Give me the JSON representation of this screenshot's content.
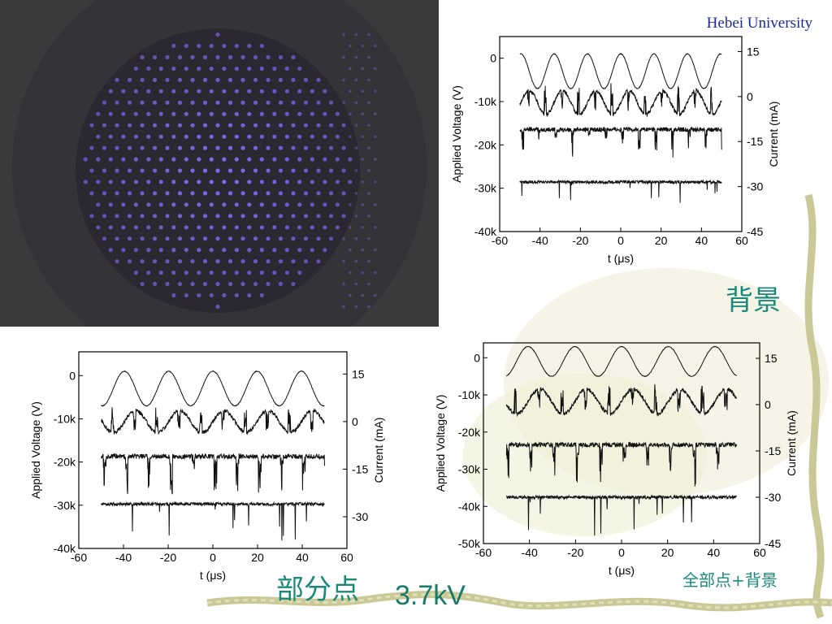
{
  "header": {
    "institution": "Hebei University"
  },
  "captions": {
    "top_right": "背景",
    "bottom_left": "部分点",
    "bottom_right": "全部点+背景",
    "voltage": "3.7kV"
  },
  "photo": {
    "description_icon": "discharge-dot-array-photo",
    "dot_color": "#8a6cff",
    "background_color": "#3a3a3a"
  },
  "colors": {
    "trace": "#111111",
    "caption": "#1a8a7a",
    "title": "#1a2a9a"
  },
  "chart_data": [
    {
      "id": "top",
      "type": "line",
      "xlabel": "t (μs)",
      "ylabel": "Applied Voltage (V)",
      "y2label": "Current (mA)",
      "xlim": [
        -60,
        60
      ],
      "xticks": [
        "-60",
        "-40",
        "-20",
        "0",
        "20",
        "40",
        "60"
      ],
      "xtick_values": [
        -60,
        -40,
        -20,
        0,
        20,
        40,
        60
      ],
      "ylim": [
        -40000,
        5000
      ],
      "yticks": [
        "0",
        "-10k",
        "-20k",
        "-30k",
        "-40k"
      ],
      "ytick_values": [
        0,
        -10000,
        -20000,
        -30000,
        -40000
      ],
      "y2lim": [
        -45,
        20
      ],
      "y2ticks": [
        "15",
        "0",
        "-15",
        "-30",
        "-45"
      ],
      "y2tick_values": [
        15,
        0,
        -15,
        -30,
        -45
      ],
      "x_range": [
        -50,
        50
      ],
      "series": [
        {
          "kind": "sine",
          "axis": "left",
          "center": -3000,
          "amplitude": 4000,
          "period_us": 16.5
        },
        {
          "kind": "current_spiky",
          "axis": "right",
          "center": -2,
          "amplitude": 4,
          "spike_up": 10,
          "spike_down": 8
        },
        {
          "kind": "current_pulses",
          "axis": "right",
          "center": -11,
          "depth": 9
        },
        {
          "kind": "noise",
          "axis": "right",
          "center": -28.5,
          "depth": 7
        }
      ]
    },
    {
      "id": "bottom_left",
      "type": "line",
      "xlabel": "t (μs)",
      "ylabel": "Applied Voltage (V)",
      "y2label": "Current (mA)",
      "xlim": [
        -60,
        60
      ],
      "xticks": [
        "-60",
        "-40",
        "-20",
        "0",
        "20",
        "40",
        "60"
      ],
      "xtick_values": [
        -60,
        -40,
        -20,
        0,
        20,
        40,
        60
      ],
      "ylim": [
        -40000,
        5500
      ],
      "yticks": [
        "0",
        "-10k",
        "-20k",
        "-30k",
        "-40k"
      ],
      "ytick_values": [
        0,
        -10000,
        -20000,
        -30000,
        -40000
      ],
      "y2lim": [
        -40,
        22
      ],
      "y2ticks": [
        "15",
        "0",
        "-15",
        "-30"
      ],
      "y2tick_values": [
        15,
        0,
        -15,
        -30
      ],
      "x_range": [
        -50,
        50
      ],
      "series": [
        {
          "kind": "sine",
          "axis": "left",
          "center": -3000,
          "amplitude": 4000,
          "period_us": 19.8
        },
        {
          "kind": "current_spiky",
          "axis": "right",
          "center": 0,
          "amplitude": 3.5,
          "spike_up": 8,
          "spike_down": 7
        },
        {
          "kind": "current_pulses",
          "axis": "right",
          "center": -11,
          "depth": 12
        },
        {
          "kind": "noise",
          "axis": "right",
          "center": -26,
          "depth": 12
        }
      ]
    },
    {
      "id": "bottom_right",
      "type": "line",
      "xlabel": "t (μs)",
      "ylabel": "Applied Voltage (V)",
      "y2label": "Current (mA)",
      "xlim": [
        -60,
        60
      ],
      "xticks": [
        "-60",
        "-40",
        "-20",
        "0",
        "20",
        "40",
        "60"
      ],
      "xtick_values": [
        -60,
        -40,
        -20,
        0,
        20,
        40,
        60
      ],
      "ylim": [
        -50000,
        4000
      ],
      "yticks": [
        "0",
        "-10k",
        "-20k",
        "-30k",
        "-40k",
        "-50k"
      ],
      "ytick_values": [
        0,
        -10000,
        -20000,
        -30000,
        -40000,
        -50000
      ],
      "y2lim": [
        -45,
        20
      ],
      "y2ticks": [
        "15",
        "0",
        "-15",
        "-30",
        "-45"
      ],
      "y2tick_values": [
        15,
        0,
        -15,
        -30,
        -45
      ],
      "x_range": [
        -50,
        50
      ],
      "series": [
        {
          "kind": "sine",
          "axis": "left",
          "center": -1000,
          "amplitude": 4000,
          "period_us": 20.3
        },
        {
          "kind": "current_spiky",
          "axis": "right",
          "center": 1,
          "amplitude": 4,
          "spike_up": 9,
          "spike_down": 7
        },
        {
          "kind": "current_pulses",
          "axis": "right",
          "center": -13,
          "depth": 13
        },
        {
          "kind": "noise",
          "axis": "right",
          "center": -30,
          "depth": 13
        }
      ]
    }
  ]
}
